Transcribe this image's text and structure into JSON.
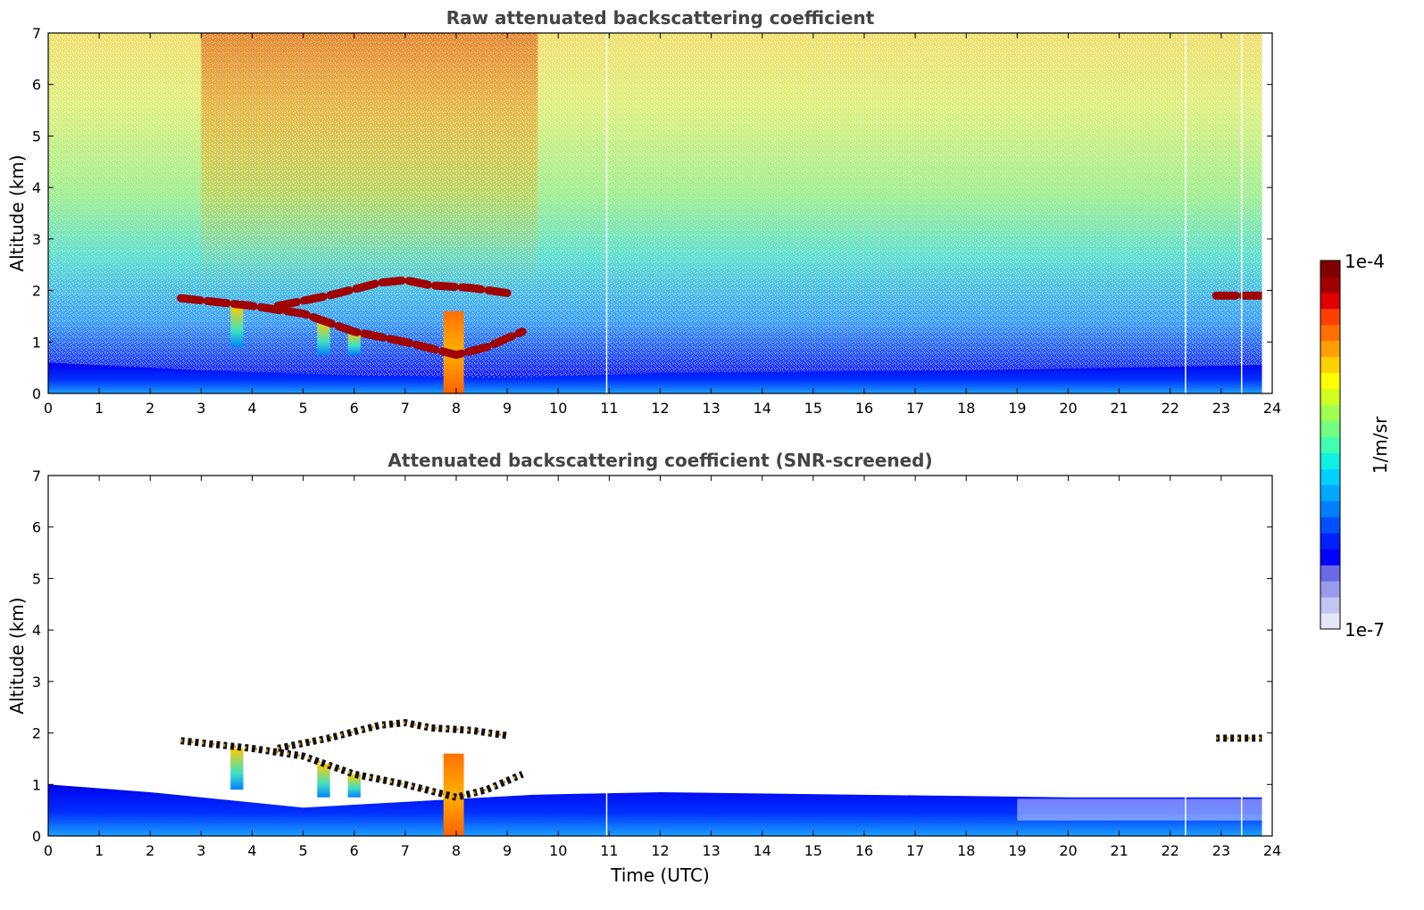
{
  "chart_data": [
    {
      "type": "heatmap",
      "title": "Raw attenuated backscattering coefficient",
      "xlabel": "",
      "ylabel": "Altitude (km)",
      "xlim": [
        0,
        24
      ],
      "ylim": [
        0,
        7
      ],
      "x_ticks": [
        "0",
        "1",
        "2",
        "3",
        "4",
        "5",
        "6",
        "7",
        "8",
        "9",
        "10",
        "11",
        "12",
        "13",
        "14",
        "15",
        "16",
        "17",
        "18",
        "19",
        "20",
        "21",
        "22",
        "23",
        "24"
      ],
      "y_ticks": [
        "0",
        "1",
        "2",
        "3",
        "4",
        "5",
        "6",
        "7"
      ],
      "data_end_time": 23.8,
      "boundary_layer": [
        {
          "x": 0,
          "top": 0.6
        },
        {
          "x": 3,
          "top": 0.45
        },
        {
          "x": 6,
          "top": 0.35
        },
        {
          "x": 9,
          "top": 0.3
        },
        {
          "x": 12,
          "top": 0.4
        },
        {
          "x": 18,
          "top": 0.45
        },
        {
          "x": 23.8,
          "top": 0.55
        }
      ],
      "cloud_layers": [
        {
          "x": [
            2.6,
            4.0,
            5.0,
            6.0,
            7.0,
            8.0,
            8.6,
            9.3
          ],
          "y": [
            1.85,
            1.7,
            1.55,
            1.2,
            1.0,
            0.75,
            0.9,
            1.2
          ]
        },
        {
          "x": [
            4.5,
            5.5,
            6.5,
            7.0,
            7.5,
            8.3,
            9.0
          ],
          "y": [
            1.7,
            1.9,
            2.15,
            2.2,
            2.1,
            2.05,
            1.95
          ]
        },
        {
          "x": [
            22.9,
            23.8
          ],
          "y": [
            1.9,
            1.9
          ]
        }
      ],
      "plumes": [
        {
          "x": 3.7,
          "top": 1.7,
          "bottom": 0.9
        },
        {
          "x": 5.4,
          "top": 1.4,
          "bottom": 0.75
        },
        {
          "x": 6.0,
          "top": 1.2,
          "bottom": 0.75
        },
        {
          "x": 7.95,
          "top": 1.6,
          "bottom": 0.0
        }
      ]
    },
    {
      "type": "heatmap",
      "title": "Attenuated backscattering coefficient (SNR-screened)",
      "xlabel": "Time (UTC)",
      "ylabel": "Altitude (km)",
      "xlim": [
        0,
        24
      ],
      "ylim": [
        0,
        7
      ],
      "x_ticks": [
        "0",
        "1",
        "2",
        "3",
        "4",
        "5",
        "6",
        "7",
        "8",
        "9",
        "10",
        "11",
        "12",
        "13",
        "14",
        "15",
        "16",
        "17",
        "18",
        "19",
        "20",
        "21",
        "22",
        "23",
        "24"
      ],
      "y_ticks": [
        "0",
        "1",
        "2",
        "3",
        "4",
        "5",
        "6",
        "7"
      ],
      "data_end_time": 23.8,
      "boundary_layer": [
        {
          "x": 0,
          "top": 1.0
        },
        {
          "x": 2,
          "top": 0.85
        },
        {
          "x": 5,
          "top": 0.55
        },
        {
          "x": 9.5,
          "top": 0.8
        },
        {
          "x": 12,
          "top": 0.85
        },
        {
          "x": 16,
          "top": 0.8
        },
        {
          "x": 20,
          "top": 0.75
        },
        {
          "x": 23.8,
          "top": 0.75
        }
      ]
    }
  ],
  "colorbar": {
    "label": "1/m/sr",
    "max_label": "1e-4",
    "min_label": "1e-7",
    "colors": [
      "#e6e6f8",
      "#c4c4f0",
      "#9a9aeb",
      "#6a6ae8",
      "#0000ff",
      "#0020ff",
      "#0050ff",
      "#0080ff",
      "#00a8ff",
      "#00d0ff",
      "#10f0e0",
      "#40ffb0",
      "#70ff80",
      "#a0ff50",
      "#d0ff20",
      "#ffff00",
      "#ffd000",
      "#ffa000",
      "#ff7000",
      "#ff4000",
      "#e00000",
      "#a00000",
      "#800000"
    ]
  }
}
